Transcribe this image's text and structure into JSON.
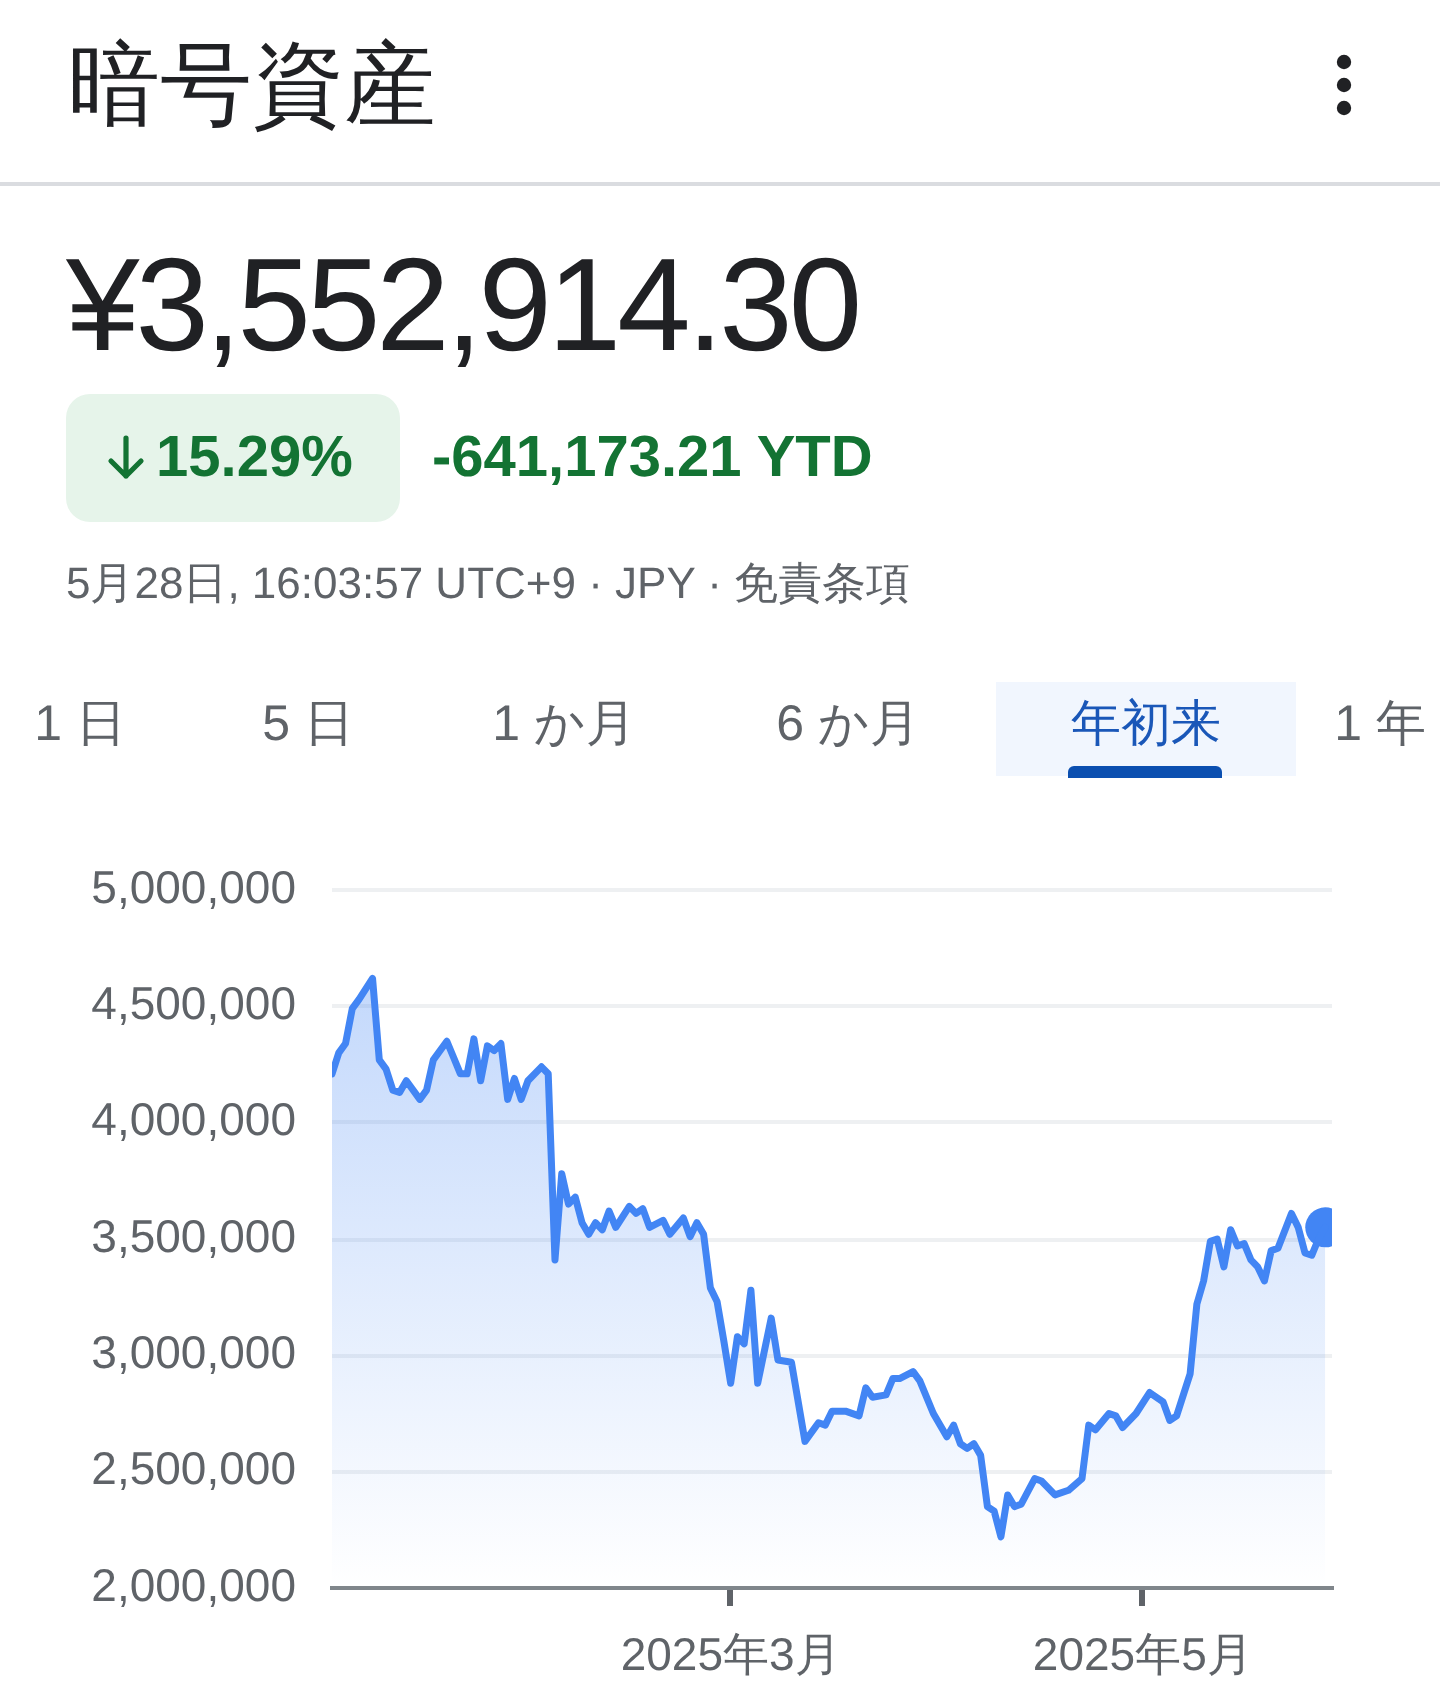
{
  "chart_data": {
    "type": "area",
    "title": "暗号資産",
    "subtitle": "¥3,552,914.30",
    "annotations": [
      "15.29%",
      "-641,173.21 YTD",
      "5月28日, 16:03:57 UTC+9 · JPY · 免責条項",
      "1 日",
      "5 日",
      "1 か月",
      "6 か月",
      "年初来",
      "1 年"
    ],
    "x": [
      "2025-01-01",
      "2025-01-02",
      "2025-01-03",
      "2025-01-04",
      "2025-01-05",
      "2025-01-07",
      "2025-01-08",
      "2025-01-09",
      "2025-01-10",
      "2025-01-11",
      "2025-01-12",
      "2025-01-14",
      "2025-01-15",
      "2025-01-16",
      "2025-01-18",
      "2025-01-19",
      "2025-01-20",
      "2025-01-21",
      "2025-01-22",
      "2025-01-23",
      "2025-01-24",
      "2025-01-25",
      "2025-01-26",
      "2025-01-27",
      "2025-01-28",
      "2025-01-29",
      "2025-01-30",
      "2025-02-01",
      "2025-02-02",
      "2025-02-03",
      "2025-02-04",
      "2025-02-05",
      "2025-02-06",
      "2025-02-07",
      "2025-02-08",
      "2025-02-09",
      "2025-02-10",
      "2025-02-11",
      "2025-02-12",
      "2025-02-14",
      "2025-02-15",
      "2025-02-16",
      "2025-02-17",
      "2025-02-19",
      "2025-02-20",
      "2025-02-22",
      "2025-02-23",
      "2025-02-24",
      "2025-02-25",
      "2025-02-26",
      "2025-02-27",
      "2025-02-28",
      "2025-03-01",
      "2025-03-02",
      "2025-03-03",
      "2025-03-04",
      "2025-03-05",
      "2025-03-07",
      "2025-03-08",
      "2025-03-10",
      "2025-03-12",
      "2025-03-14",
      "2025-03-15",
      "2025-03-16",
      "2025-03-18",
      "2025-03-20",
      "2025-03-21",
      "2025-03-22",
      "2025-03-24",
      "2025-03-25",
      "2025-03-26",
      "2025-03-28",
      "2025-03-29",
      "2025-03-31",
      "2025-04-02",
      "2025-04-03",
      "2025-04-04",
      "2025-04-05",
      "2025-04-06",
      "2025-04-07",
      "2025-04-08",
      "2025-04-09",
      "2025-04-10",
      "2025-04-11",
      "2025-04-12",
      "2025-04-13",
      "2025-04-15",
      "2025-04-16",
      "2025-04-18",
      "2025-04-20",
      "2025-04-22",
      "2025-04-23",
      "2025-04-24",
      "2025-04-26",
      "2025-04-27",
      "2025-04-28",
      "2025-04-30",
      "2025-05-02",
      "2025-05-04",
      "2025-05-05",
      "2025-05-06",
      "2025-05-08",
      "2025-05-09",
      "2025-05-10",
      "2025-05-11",
      "2025-05-12",
      "2025-05-13",
      "2025-05-14",
      "2025-05-15",
      "2025-05-16",
      "2025-05-17",
      "2025-05-18",
      "2025-05-19",
      "2025-05-20",
      "2025-05-21",
      "2025-05-23",
      "2025-05-24",
      "2025-05-25",
      "2025-05-26",
      "2025-05-27",
      "2025-05-28"
    ],
    "series": [
      {
        "color": "#4285f4",
        "marker": "none",
        "values": [
          4210000,
          4300000,
          4340000,
          4490000,
          4530000,
          4620000,
          4270000,
          4230000,
          4140000,
          4130000,
          4180000,
          4100000,
          4140000,
          4270000,
          4350000,
          4280000,
          4210000,
          4210000,
          4360000,
          4180000,
          4330000,
          4310000,
          4340000,
          4100000,
          4190000,
          4100000,
          4180000,
          4240000,
          4210000,
          3410000,
          3780000,
          3650000,
          3680000,
          3570000,
          3520000,
          3570000,
          3540000,
          3620000,
          3550000,
          3640000,
          3610000,
          3630000,
          3550000,
          3580000,
          3520000,
          3590000,
          3510000,
          3570000,
          3520000,
          3290000,
          3230000,
          3060000,
          2880000,
          3080000,
          3050000,
          3280000,
          2880000,
          3160000,
          2980000,
          2970000,
          2630000,
          2710000,
          2700000,
          2760000,
          2760000,
          2740000,
          2860000,
          2820000,
          2830000,
          2900000,
          2900000,
          2930000,
          2890000,
          2750000,
          2650000,
          2700000,
          2620000,
          2600000,
          2620000,
          2570000,
          2350000,
          2330000,
          2220000,
          2400000,
          2350000,
          2360000,
          2470000,
          2460000,
          2400000,
          2420000,
          2470000,
          2700000,
          2680000,
          2750000,
          2740000,
          2690000,
          2750000,
          2840000,
          2800000,
          2720000,
          2740000,
          2920000,
          3220000,
          3320000,
          3490000,
          3500000,
          3380000,
          3540000,
          3470000,
          3480000,
          3410000,
          3380000,
          3320000,
          3450000,
          3460000,
          3610000,
          3550000,
          3440000,
          3430000,
          3500000,
          3550000
        ]
      },
      {
        "type": "scatter",
        "color": "#4285f4",
        "marker": "circle",
        "x": [
          "2025-05-28"
        ],
        "values": [
          3550000
        ]
      }
    ],
    "xlim": [
      "2025-01-01",
      "2025-05-29"
    ],
    "xticks": [
      {
        "value": "2025-03-01",
        "label": "2025年3月"
      },
      {
        "value": "2025-05-01",
        "label": "2025年5月"
      }
    ],
    "ylim": [
      2000000,
      5000000
    ],
    "yticks": [
      {
        "value": 2000000,
        "label": "2,000,000"
      },
      {
        "value": 2500000,
        "label": "2,500,000"
      },
      {
        "value": 3000000,
        "label": "3,000,000"
      },
      {
        "value": 3500000,
        "label": "3,500,000"
      },
      {
        "value": 4000000,
        "label": "4,000,000"
      },
      {
        "value": 4500000,
        "label": "4,500,000"
      },
      {
        "value": 5000000,
        "label": "5,000,000"
      }
    ],
    "grid": "y"
  }
}
